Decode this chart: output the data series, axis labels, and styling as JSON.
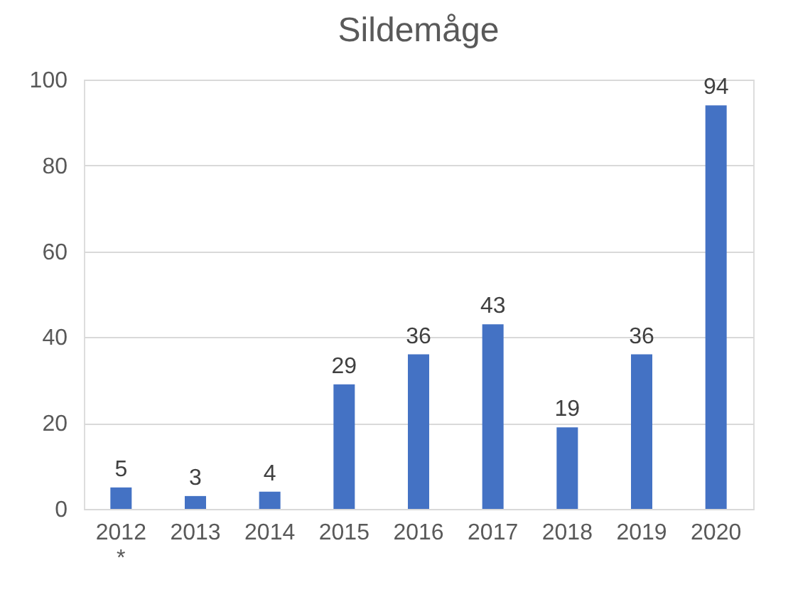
{
  "chart_data": {
    "type": "bar",
    "title": "Sildemåge",
    "categories": [
      "2012\n*",
      "2013",
      "2014",
      "2015",
      "2016",
      "2017",
      "2018",
      "2019",
      "2020"
    ],
    "values": [
      5,
      3,
      4,
      29,
      36,
      43,
      19,
      36,
      94
    ],
    "color": "#4472c4",
    "ylim": [
      0,
      100
    ],
    "yticks": [
      0,
      20,
      40,
      60,
      80,
      100
    ],
    "grid": "y",
    "data_labels": true
  }
}
